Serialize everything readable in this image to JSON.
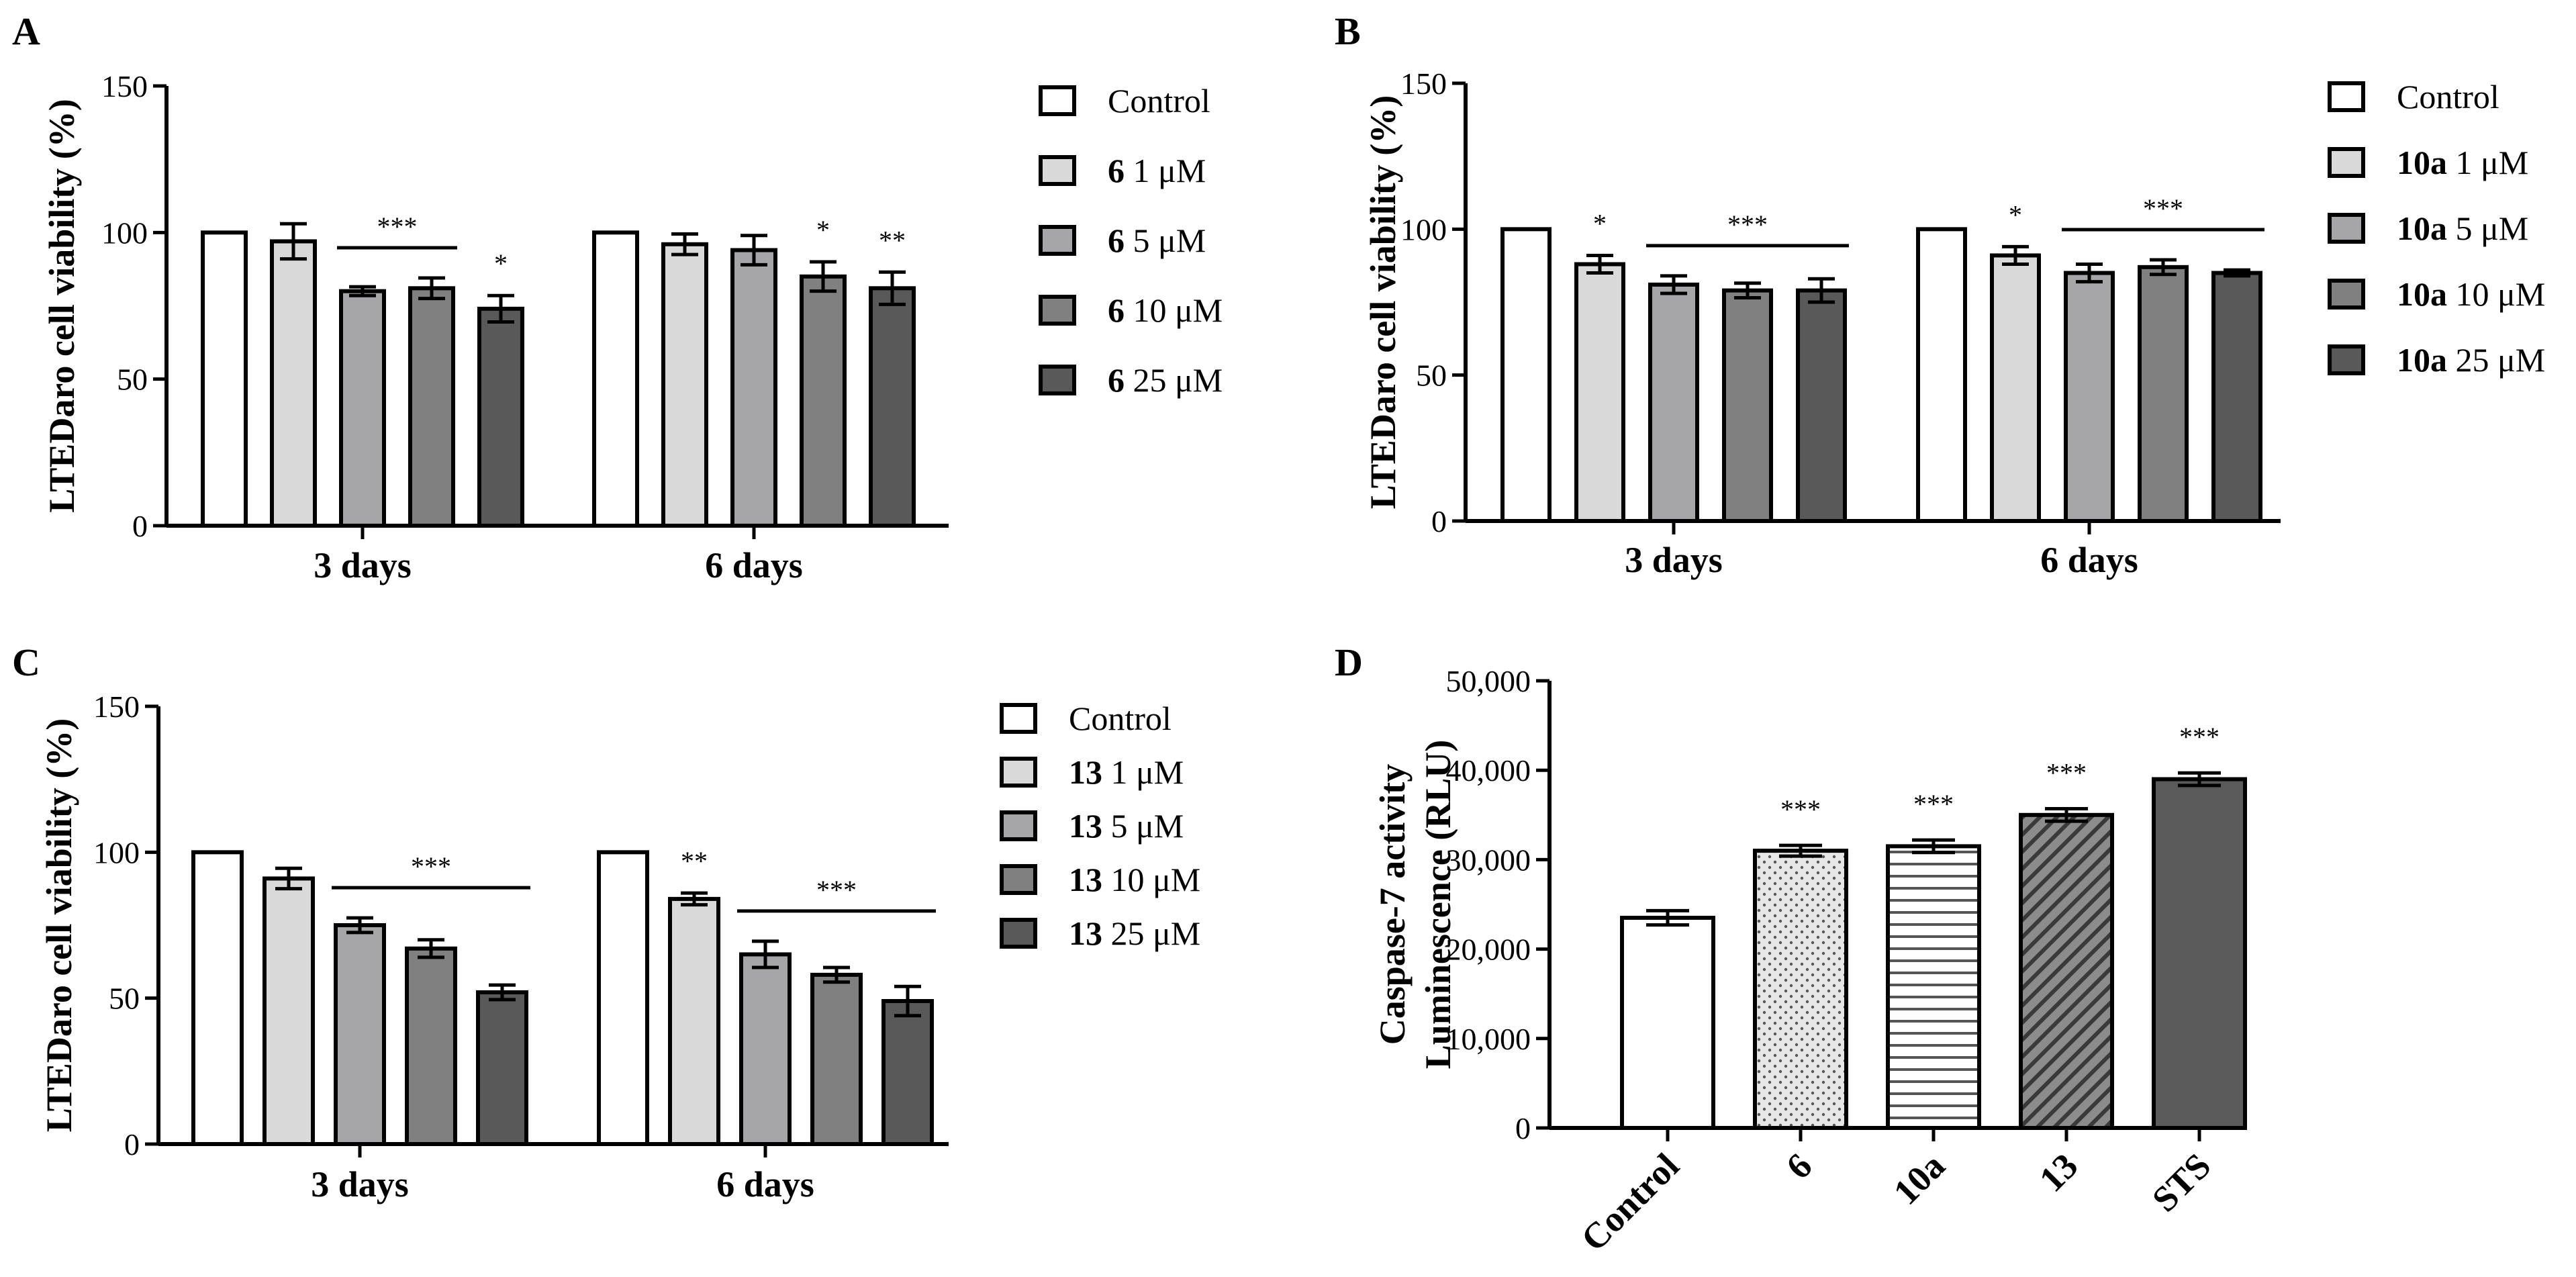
{
  "colors": {
    "control": "#ffffff",
    "c1": "#d9d9d9",
    "c5": "#a6a6a8",
    "c10": "#808080",
    "c25": "#595959",
    "sts": "#5a5a5a",
    "black": "#000000"
  },
  "chart_data": [
    {
      "id": "A",
      "type": "bar",
      "letter": "A",
      "ylabel": "LTEDaro cell viability (%)",
      "ylim": [
        0,
        150
      ],
      "yticks": [
        "0",
        "50",
        "100",
        "150"
      ],
      "categories": [
        "3 days",
        "6 days"
      ],
      "legend": [
        {
          "bold": "",
          "text": "Control"
        },
        {
          "bold": "6",
          "text": " 1 μM"
        },
        {
          "bold": "6",
          "text": " 5 μM"
        },
        {
          "bold": "6",
          "text": " 10 μM"
        },
        {
          "bold": "6",
          "text": " 25 μM"
        }
      ],
      "series": [
        {
          "name": "Control",
          "values": [
            100,
            100
          ],
          "err": [
            0,
            0
          ]
        },
        {
          "name": "6 1 μM",
          "values": [
            97,
            96
          ],
          "err": [
            6,
            3.5
          ]
        },
        {
          "name": "6 5 μM",
          "values": [
            80,
            94
          ],
          "err": [
            1.5,
            5
          ]
        },
        {
          "name": "6 10 μM",
          "values": [
            81,
            85
          ],
          "err": [
            3.5,
            5
          ]
        },
        {
          "name": "6 25 μM",
          "values": [
            74,
            81
          ],
          "err": [
            4.5,
            5.5
          ]
        }
      ],
      "annotations": [
        {
          "text": "***",
          "group": 0,
          "from": 2,
          "to": 3,
          "line": true
        },
        {
          "text": "*",
          "group": 0,
          "bar": 4
        },
        {
          "text": "*",
          "group": 1,
          "bar": 3
        },
        {
          "text": "**",
          "group": 1,
          "bar": 4
        }
      ]
    },
    {
      "id": "B",
      "type": "bar",
      "letter": "B",
      "ylabel": "LTEDaro cell viability (%)",
      "ylim": [
        0,
        150
      ],
      "yticks": [
        "0",
        "50",
        "100",
        "150"
      ],
      "categories": [
        "3 days",
        "6 days"
      ],
      "legend": [
        {
          "bold": "",
          "text": "Control"
        },
        {
          "bold": "10a",
          "text": " 1 μM"
        },
        {
          "bold": "10a",
          "text": " 5 μM"
        },
        {
          "bold": "10a",
          "text": " 10 μM"
        },
        {
          "bold": "10a",
          "text": " 25 μM"
        }
      ],
      "series": [
        {
          "name": "Control",
          "values": [
            100,
            100
          ],
          "err": [
            0,
            0
          ]
        },
        {
          "name": "10a 1 μM",
          "values": [
            88,
            91
          ],
          "err": [
            3,
            3
          ]
        },
        {
          "name": "10a 5 μM",
          "values": [
            81,
            85
          ],
          "err": [
            3,
            3
          ]
        },
        {
          "name": "10a 10 μM",
          "values": [
            79,
            87
          ],
          "err": [
            2.5,
            2.5
          ]
        },
        {
          "name": "10a 25 μM",
          "values": [
            79,
            85
          ],
          "err": [
            4,
            1
          ]
        }
      ],
      "annotations": [
        {
          "text": "*",
          "group": 0,
          "bar": 1
        },
        {
          "text": "***",
          "group": 0,
          "from": 2,
          "to": 4,
          "line": true
        },
        {
          "text": "*",
          "group": 1,
          "bar": 1
        },
        {
          "text": "***",
          "group": 1,
          "from": 2,
          "to": 4,
          "line": true
        }
      ]
    },
    {
      "id": "C",
      "type": "bar",
      "letter": "C",
      "ylabel": "LTEDaro cell viability (%)",
      "ylim": [
        0,
        150
      ],
      "yticks": [
        "0",
        "50",
        "100",
        "150"
      ],
      "categories": [
        "3 days",
        "6 days"
      ],
      "legend": [
        {
          "bold": "",
          "text": "Control"
        },
        {
          "bold": "13",
          "text": " 1 μM"
        },
        {
          "bold": "13",
          "text": " 5 μM"
        },
        {
          "bold": "13",
          "text": " 10 μM"
        },
        {
          "bold": "13",
          "text": " 25 μM"
        }
      ],
      "series": [
        {
          "name": "Control",
          "values": [
            100,
            100
          ],
          "err": [
            0,
            0
          ]
        },
        {
          "name": "13 1 μM",
          "values": [
            91,
            84
          ],
          "err": [
            3.5,
            2
          ]
        },
        {
          "name": "13 5 μM",
          "values": [
            75,
            65
          ],
          "err": [
            2.5,
            4.5
          ]
        },
        {
          "name": "13 10 μM",
          "values": [
            67,
            58
          ],
          "err": [
            3,
            2.5
          ]
        },
        {
          "name": "13 25 μM",
          "values": [
            52,
            49
          ],
          "err": [
            2.5,
            5
          ]
        }
      ],
      "annotations": [
        {
          "text": "***",
          "group": 0,
          "from": 2,
          "to": 4,
          "line": true
        },
        {
          "text": "**",
          "group": 1,
          "bar": 1
        },
        {
          "text": "***",
          "group": 1,
          "from": 2,
          "to": 4,
          "line": true
        }
      ]
    },
    {
      "id": "D",
      "type": "bar",
      "letter": "D",
      "ylabel_lines": [
        "Caspase-7 activity",
        "Luminescence (RLU)"
      ],
      "ylim": [
        0,
        50000
      ],
      "yticks": [
        "0",
        "10,000",
        "20,000",
        "30,000",
        "40,000",
        "50,000"
      ],
      "categories": [
        "Control",
        "6",
        "10a",
        "13",
        "STS"
      ],
      "values": [
        23500,
        31000,
        31500,
        35000,
        39000
      ],
      "err": [
        800,
        600,
        700,
        700,
        700
      ],
      "patterns": [
        "none",
        "dots",
        "hlines",
        "diag",
        "solid"
      ],
      "annotations": [
        "",
        "***",
        "***",
        "***",
        "***"
      ]
    }
  ]
}
